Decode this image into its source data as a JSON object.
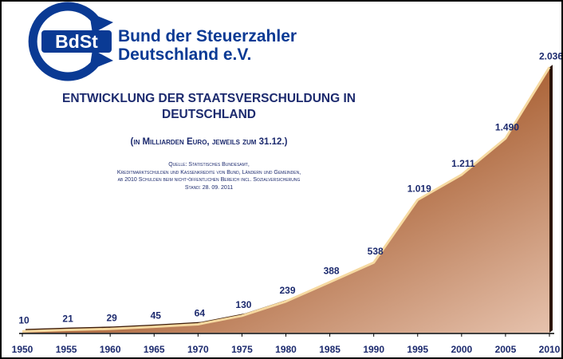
{
  "organization": {
    "logo_text": "BdSt",
    "name_line1": "Bund der Steuerzahler",
    "name_line2": "Deutschland e.V."
  },
  "header": {
    "title": "ENTWICKLUNG DER STAATSVERSCHULDUNG IN DEUTSCHLAND",
    "subtitle": "(in Milliarden Euro, jeweils zum 31.12.)",
    "source": "Quelle: Statistisches Bundesamt,\nKreditmarktschulden und Kassenkredite von Bund, Ländern und Gemeinden,\nab 2010 Schulden beim nicht-öffentlichen Bereich incl. Sozialversicherung\nStand: 28. 09. 2011"
  },
  "colors": {
    "brand_blue": "#0a3a94",
    "title_navy": "#1c2a6e",
    "area_dark": "#3e1c08",
    "area_mid": "#a0552a",
    "area_light": "#e3bba4",
    "ridge": "#f6d9a0"
  },
  "chart_data": {
    "type": "area",
    "categories": [
      "1950",
      "1955",
      "1960",
      "1965",
      "1970",
      "1975",
      "1980",
      "1985",
      "1990",
      "1995",
      "2000",
      "2005",
      "2010"
    ],
    "values": [
      10,
      21,
      29,
      45,
      64,
      130,
      239,
      388,
      538,
      1019,
      1211,
      1490,
      2036
    ],
    "value_labels": [
      "10",
      "21",
      "29",
      "45",
      "64",
      "130",
      "239",
      "388",
      "538",
      "1.019",
      "1.211",
      "1.490",
      "2.036"
    ],
    "ylim": [
      0,
      2050
    ],
    "grid": false,
    "legend": "none"
  }
}
